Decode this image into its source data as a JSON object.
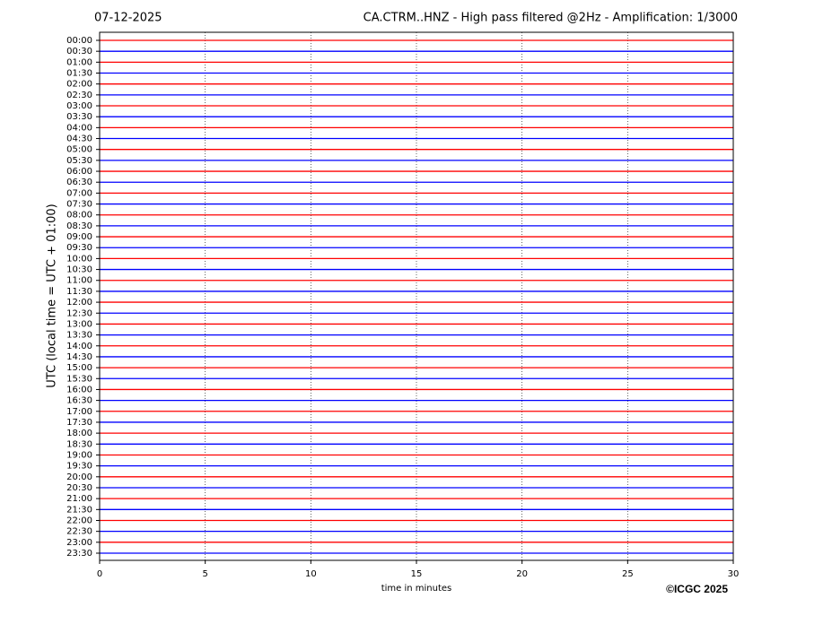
{
  "chart_data": {
    "type": "helicorder",
    "date": "07-12-2025",
    "title": "CA.CTRM..HNZ - High pass filtered @2Hz - Amplification: 1/3000",
    "y_label": "UTC (local time = UTC + 01:00)",
    "x_label": "time in minutes",
    "copyright": "©ICGC 2025",
    "categories": [
      "00:00",
      "00:30",
      "01:00",
      "01:30",
      "02:00",
      "02:30",
      "03:00",
      "03:30",
      "04:00",
      "04:30",
      "05:00",
      "05:30",
      "06:00",
      "06:30",
      "07:00",
      "07:30",
      "08:00",
      "08:30",
      "09:00",
      "09:30",
      "10:00",
      "10:30",
      "11:00",
      "11:30",
      "12:00",
      "12:30",
      "13:00",
      "13:30",
      "14:00",
      "14:30",
      "15:00",
      "15:30",
      "16:00",
      "16:30",
      "17:00",
      "17:30",
      "18:00",
      "18:30",
      "19:00",
      "19:30",
      "20:00",
      "20:30",
      "21:00",
      "21:30",
      "22:00",
      "22:30",
      "23:00",
      "23:30"
    ],
    "colors": [
      "#ff0000",
      "#0000ff"
    ],
    "xlim": [
      0,
      30
    ],
    "xticks": [
      0,
      5,
      10,
      15,
      20,
      25,
      30
    ],
    "grid": true
  }
}
